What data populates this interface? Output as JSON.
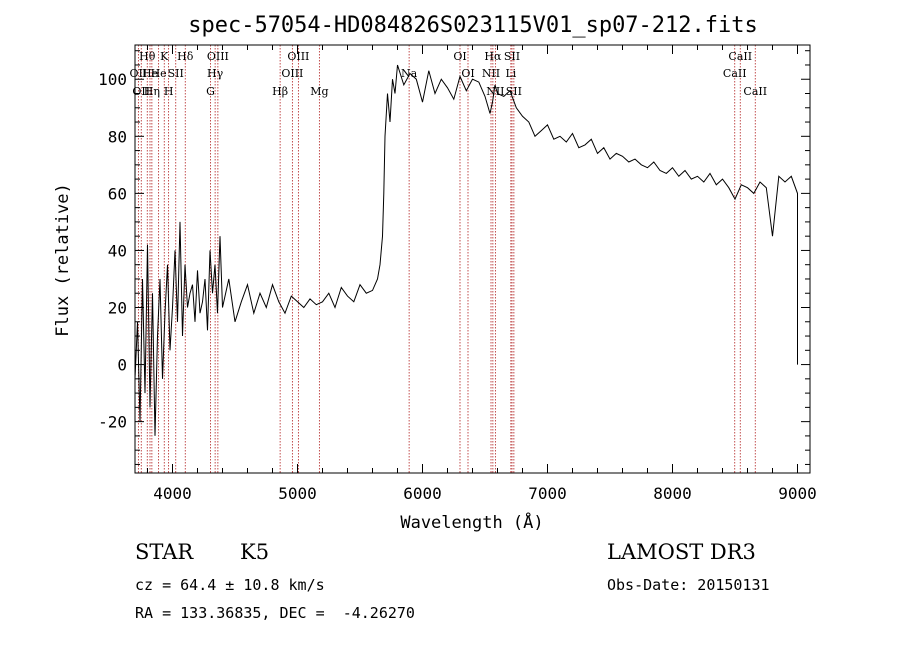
{
  "chart_data": {
    "type": "line",
    "title": "spec-57054-HD084826S023115V01_sp07-212.fits",
    "xlabel": "Wavelength (Å)",
    "ylabel": "Flux (relative)",
    "xlim": [
      3700,
      9100
    ],
    "ylim": [
      -38,
      112
    ],
    "x_ticks": [
      4000,
      5000,
      6000,
      7000,
      8000,
      9000
    ],
    "y_ticks": [
      -20,
      0,
      20,
      40,
      60,
      80,
      100
    ],
    "grid": false,
    "series": [
      {
        "x": [
          3700,
          3720,
          3740,
          3760,
          3780,
          3800,
          3820,
          3840,
          3860,
          3880,
          3900,
          3920,
          3940,
          3960,
          3980,
          4000,
          4020,
          4040,
          4060,
          4080,
          4100,
          4120,
          4140,
          4160,
          4180,
          4200,
          4220,
          4240,
          4260,
          4280,
          4300,
          4320,
          4340,
          4360,
          4380,
          4400,
          4450,
          4500,
          4550,
          4600,
          4650,
          4700,
          4750,
          4800,
          4850,
          4900,
          4950,
          5000,
          5050,
          5100,
          5150,
          5200,
          5250,
          5300,
          5350,
          5400,
          5450,
          5500,
          5550,
          5600,
          5640,
          5660,
          5680,
          5690,
          5700,
          5720,
          5740,
          5760,
          5780,
          5800,
          5850,
          5900,
          5950,
          6000,
          6050,
          6100,
          6150,
          6200,
          6250,
          6300,
          6350,
          6400,
          6450,
          6500,
          6540,
          6560,
          6580,
          6600,
          6650,
          6700,
          6750,
          6800,
          6850,
          6900,
          6950,
          7000,
          7050,
          7100,
          7150,
          7200,
          7250,
          7300,
          7350,
          7400,
          7450,
          7500,
          7550,
          7600,
          7650,
          7700,
          7750,
          7800,
          7850,
          7900,
          7950,
          8000,
          8050,
          8100,
          8150,
          8200,
          8250,
          8300,
          8350,
          8400,
          8450,
          8500,
          8550,
          8600,
          8650,
          8700,
          8750,
          8800,
          8850,
          8900,
          8950,
          9000,
          9000,
          9000
        ],
        "values": [
          -5,
          15,
          -20,
          30,
          -10,
          42,
          -15,
          25,
          -25,
          10,
          30,
          -5,
          18,
          35,
          5,
          20,
          40,
          15,
          50,
          10,
          35,
          20,
          25,
          28,
          15,
          33,
          18,
          22,
          30,
          12,
          40,
          25,
          35,
          18,
          45,
          20,
          30,
          15,
          22,
          28,
          18,
          25,
          20,
          28,
          22,
          18,
          24,
          22,
          20,
          23,
          21,
          22,
          25,
          20,
          27,
          24,
          22,
          28,
          25,
          26,
          30,
          35,
          45,
          60,
          80,
          95,
          85,
          100,
          95,
          105,
          98,
          102,
          100,
          92,
          103,
          95,
          100,
          97,
          93,
          101,
          96,
          100,
          99,
          94,
          88,
          92,
          98,
          95,
          94,
          96,
          90,
          87,
          85,
          80,
          82,
          84,
          79,
          80,
          78,
          81,
          76,
          77,
          79,
          74,
          76,
          72,
          74,
          73,
          71,
          72,
          70,
          69,
          71,
          68,
          67,
          69,
          66,
          68,
          65,
          66,
          64,
          67,
          63,
          65,
          62,
          58,
          63,
          62,
          60,
          64,
          62,
          45,
          66,
          64,
          66,
          60,
          30,
          0
        ]
      }
    ],
    "lines": [
      {
        "x": 3727,
        "name": "OII",
        "row": 1
      },
      {
        "x": 3750,
        "name": "OII",
        "row": 2
      },
      {
        "x": 3798,
        "name": "Hθ",
        "row": 0
      },
      {
        "x": 3820,
        "name": "He",
        "row": 1
      },
      {
        "x": 3835,
        "name": "Hη",
        "row": 2
      },
      {
        "x": 3889,
        "name": "He",
        "row": 1
      },
      {
        "x": 3934,
        "name": "K",
        "row": 0
      },
      {
        "x": 3969,
        "name": "H",
        "row": 2
      },
      {
        "x": 4026,
        "name": "SII",
        "row": 1
      },
      {
        "x": 4102,
        "name": "Hδ",
        "row": 0
      },
      {
        "x": 4304,
        "name": "G",
        "row": 2
      },
      {
        "x": 4341,
        "name": "Hγ",
        "row": 1
      },
      {
        "x": 4363,
        "name": "OIII",
        "row": 0
      },
      {
        "x": 4861,
        "name": "Hβ",
        "row": 2
      },
      {
        "x": 4959,
        "name": "OIII",
        "row": 1
      },
      {
        "x": 5007,
        "name": "OIII",
        "row": 0
      },
      {
        "x": 5175,
        "name": "Mg",
        "row": 2
      },
      {
        "x": 5893,
        "name": "Na",
        "row": 1
      },
      {
        "x": 6300,
        "name": "OI",
        "row": 0
      },
      {
        "x": 6364,
        "name": "OI",
        "row": 1
      },
      {
        "x": 6548,
        "name": "NII",
        "row": 1
      },
      {
        "x": 6563,
        "name": "Hα",
        "row": 0
      },
      {
        "x": 6583,
        "name": "NII",
        "row": 2
      },
      {
        "x": 6707,
        "name": "Li",
        "row": 1
      },
      {
        "x": 6716,
        "name": "SII",
        "row": 0
      },
      {
        "x": 6731,
        "name": "SII",
        "row": 2
      },
      {
        "x": 8498,
        "name": "CaII",
        "row": 1
      },
      {
        "x": 8542,
        "name": "CaII",
        "row": 0
      },
      {
        "x": 8662,
        "name": "CaII",
        "row": 2
      }
    ]
  },
  "info": {
    "class": "STAR",
    "subclass": "K5",
    "survey": "LAMOST DR3",
    "cz": "cz = 64.4 ± 10.8 km/s",
    "obs_date": "Obs-Date: 20150131",
    "radec": "RA = 133.36835, DEC =  -4.26270"
  },
  "colors": {
    "line_marker": "#b22222",
    "spectrum": "#000000",
    "axes": "#000000"
  }
}
